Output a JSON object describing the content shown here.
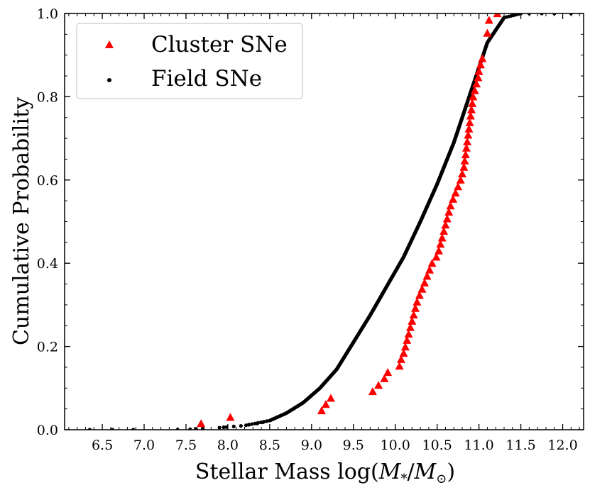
{
  "chart_data": {
    "type": "scatter",
    "title": "",
    "xlabel_prefix": "Stellar Mass log(",
    "xlabel_m_star": "M",
    "xlabel_star_sub": "*",
    "xlabel_slash": "/",
    "xlabel_m_sun": "M",
    "xlabel_sun_sub": "⊙",
    "xlabel_suffix": ")",
    "ylabel": "Cumulative Probability",
    "xlim": [
      6.05,
      12.25
    ],
    "ylim": [
      0.0,
      1.0
    ],
    "x_ticks": [
      6.5,
      7.0,
      7.5,
      8.0,
      8.5,
      9.0,
      9.5,
      10.0,
      10.5,
      11.0,
      11.5,
      12.0
    ],
    "x_tick_labels": [
      "6.5",
      "7.0",
      "7.5",
      "8.0",
      "8.5",
      "9.0",
      "9.5",
      "10.0",
      "10.5",
      "11.0",
      "11.5",
      "12.0"
    ],
    "x_minor_step": 0.1,
    "y_ticks": [
      0.0,
      0.2,
      0.4,
      0.6,
      0.8,
      1.0
    ],
    "y_tick_labels": [
      "0.0",
      "0.2",
      "0.4",
      "0.6",
      "0.8",
      "1.0"
    ],
    "y_minor_step": 0.05,
    "grid": false,
    "legend_position": "top-left",
    "legend": [
      {
        "label": "Cluster SNe",
        "marker": "triangle",
        "color": "#ff0000"
      },
      {
        "label": "Field SNe",
        "marker": "dot",
        "color": "#000000"
      }
    ],
    "series": [
      {
        "name": "Cluster SNe",
        "marker": "triangle",
        "color": "#ff0000",
        "x": [
          7.68,
          8.03,
          9.12,
          9.17,
          9.23,
          9.73,
          9.8,
          9.87,
          9.91,
          10.05,
          10.07,
          10.1,
          10.12,
          10.14,
          10.16,
          10.18,
          10.2,
          10.22,
          10.24,
          10.26,
          10.29,
          10.32,
          10.35,
          10.38,
          10.41,
          10.44,
          10.49,
          10.52,
          10.54,
          10.56,
          10.58,
          10.6,
          10.62,
          10.64,
          10.66,
          10.69,
          10.72,
          10.75,
          10.78,
          10.8,
          10.82,
          10.83,
          10.84,
          10.85,
          10.86,
          10.87,
          10.88,
          10.89,
          10.9,
          10.91,
          10.92,
          10.93,
          10.95,
          10.97,
          10.99,
          11.0,
          11.02,
          11.04,
          11.1,
          11.12,
          11.22
        ],
        "y": [
          0.015,
          0.03,
          0.046,
          0.061,
          0.076,
          0.092,
          0.107,
          0.123,
          0.138,
          0.153,
          0.169,
          0.184,
          0.199,
          0.215,
          0.23,
          0.246,
          0.261,
          0.276,
          0.292,
          0.307,
          0.323,
          0.338,
          0.353,
          0.369,
          0.384,
          0.4,
          0.415,
          0.43,
          0.446,
          0.461,
          0.477,
          0.492,
          0.507,
          0.523,
          0.538,
          0.554,
          0.569,
          0.584,
          0.6,
          0.615,
          0.631,
          0.646,
          0.661,
          0.677,
          0.692,
          0.708,
          0.723,
          0.738,
          0.754,
          0.769,
          0.784,
          0.8,
          0.815,
          0.831,
          0.846,
          0.861,
          0.877,
          0.892,
          0.953,
          0.984,
          1.0
        ]
      },
      {
        "name": "Field SNe",
        "marker": "dot",
        "color": "#000000",
        "cdf_nodes": [
          [
            6.35,
            0.0
          ],
          [
            7.4,
            0.0
          ],
          [
            7.9,
            0.005
          ],
          [
            8.2,
            0.01
          ],
          [
            8.5,
            0.022
          ],
          [
            8.7,
            0.04
          ],
          [
            8.9,
            0.065
          ],
          [
            9.1,
            0.1
          ],
          [
            9.3,
            0.145
          ],
          [
            9.5,
            0.21
          ],
          [
            9.7,
            0.275
          ],
          [
            9.9,
            0.345
          ],
          [
            10.1,
            0.415
          ],
          [
            10.3,
            0.5
          ],
          [
            10.5,
            0.59
          ],
          [
            10.7,
            0.69
          ],
          [
            10.9,
            0.81
          ],
          [
            11.1,
            0.93
          ],
          [
            11.3,
            0.99
          ],
          [
            11.5,
            1.0
          ]
        ],
        "count": 700,
        "extra_points": [
          [
            6.35,
            0.0
          ],
          [
            6.62,
            0.0
          ],
          [
            6.87,
            0.0
          ],
          [
            7.4,
            0.0
          ],
          [
            7.55,
            0.001
          ],
          [
            7.62,
            0.002
          ],
          [
            7.7,
            0.003
          ],
          [
            7.95,
            0.006
          ],
          [
            8.25,
            0.012
          ],
          [
            8.35,
            0.015
          ],
          [
            8.42,
            0.018
          ],
          [
            11.6,
            1.0
          ],
          [
            11.75,
            1.0
          ],
          [
            11.9,
            1.0
          ],
          [
            12.1,
            1.0
          ]
        ]
      }
    ]
  }
}
